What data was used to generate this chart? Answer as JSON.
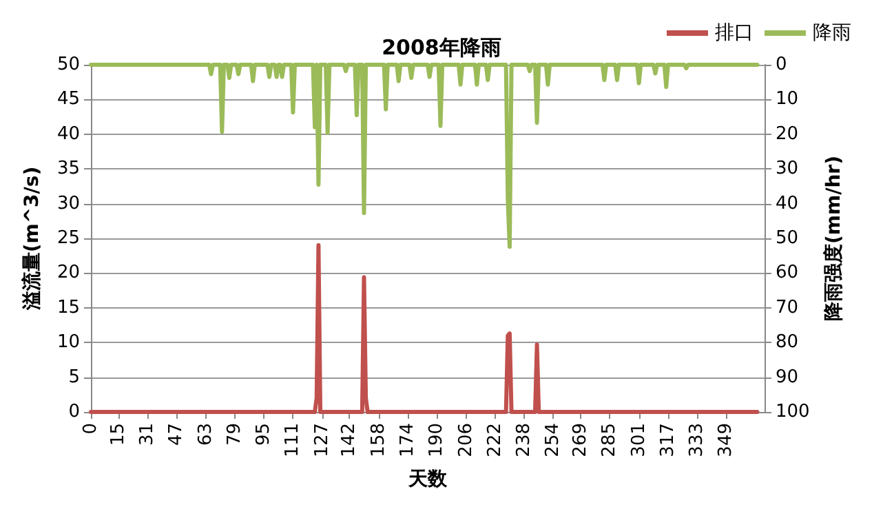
{
  "chart_data": {
    "type": "line",
    "title": "2008年降雨",
    "xlabel": "天数",
    "ylabel": "溢流量(m^3/s)",
    "y2label": "降雨强度(mm/hr)",
    "xlim": [
      0,
      370
    ],
    "xticks": [
      0,
      15,
      31,
      47,
      63,
      79,
      95,
      111,
      127,
      142,
      158,
      174,
      190,
      206,
      222,
      238,
      254,
      269,
      285,
      301,
      317,
      333,
      349
    ],
    "ylim": [
      0,
      50
    ],
    "yticks": [
      0,
      5,
      10,
      15,
      20,
      25,
      30,
      35,
      40,
      45,
      50
    ],
    "y2lim": [
      100,
      0
    ],
    "y2ticks": [
      0,
      10,
      20,
      30,
      40,
      50,
      60,
      70,
      80,
      90,
      100
    ],
    "grid": "y",
    "legend": "top right",
    "marker": "none",
    "line_style": "solid",
    "series": [
      {
        "name": "排口",
        "color": "#c0504d",
        "x": [
          0,
          123,
          124,
          125,
          126,
          149,
          150,
          151,
          152,
          228,
          229,
          230,
          231,
          244,
          245,
          246,
          366
        ],
        "values": [
          0,
          0,
          2,
          24,
          0,
          0,
          19.4,
          2,
          0,
          0,
          11,
          11.3,
          0,
          0,
          9.7,
          0,
          0
        ]
      },
      {
        "name": "降雨",
        "color": "#9bbb59",
        "axis": "y2",
        "x": [
          0,
          65,
          66,
          67,
          71,
          72,
          73,
          75,
          76,
          77,
          80,
          81,
          82,
          88,
          89,
          90,
          97,
          98,
          99,
          101,
          102,
          103,
          104,
          105,
          106,
          110,
          111,
          112,
          122,
          123,
          124,
          125,
          126,
          129,
          130,
          131,
          139,
          140,
          141,
          145,
          146,
          147,
          149,
          150,
          151,
          161,
          162,
          163,
          168,
          169,
          170,
          175,
          176,
          177,
          185,
          186,
          187,
          191,
          192,
          193,
          202,
          203,
          204,
          211,
          212,
          213,
          217,
          218,
          219,
          228,
          229,
          230,
          231,
          240,
          241,
          242,
          244,
          245,
          246,
          250,
          251,
          252,
          281,
          282,
          283,
          288,
          289,
          290,
          300,
          301,
          302,
          309,
          310,
          311,
          315,
          316,
          317,
          326,
          327,
          328,
          366
        ],
        "values": [
          0,
          0,
          2.7,
          0,
          0,
          19.3,
          0,
          0,
          3.8,
          0,
          0,
          2.7,
          0,
          0,
          4.7,
          0,
          0,
          3.5,
          0,
          0,
          3.5,
          0,
          0,
          3.5,
          0,
          0,
          13.7,
          0,
          0,
          18,
          0,
          34.5,
          0,
          0,
          19.6,
          0,
          0,
          1.8,
          0,
          0,
          14.5,
          0,
          0,
          42.7,
          0,
          0,
          12.8,
          0,
          0,
          4.7,
          0,
          0,
          3.8,
          0,
          0,
          3.5,
          0,
          0,
          17.6,
          0,
          0,
          5.7,
          0,
          0,
          5.7,
          0,
          0,
          4.4,
          0,
          0,
          38.8,
          52.4,
          0,
          0,
          1.8,
          0,
          0,
          16.7,
          0,
          0,
          5.7,
          0,
          0,
          4.4,
          0,
          0,
          4.4,
          0,
          0,
          5.3,
          0,
          0,
          2.5,
          0,
          0,
          6.4,
          0,
          0,
          1,
          0,
          0
        ]
      }
    ]
  }
}
